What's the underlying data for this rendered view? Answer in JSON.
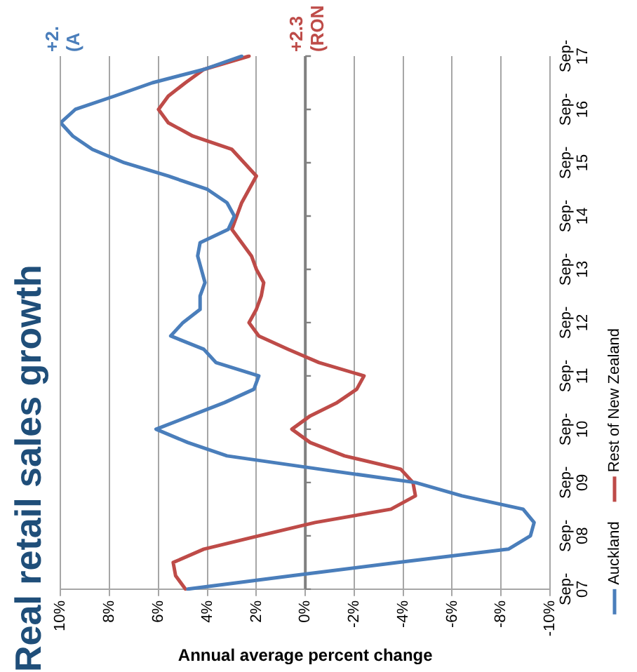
{
  "chart_data": {
    "type": "line",
    "orientation": "horizontal",
    "title": "Real retail sales growth",
    "xlabel": "Annual average percent change",
    "categories": [
      "Sep-17",
      null,
      null,
      null,
      "Sep-16",
      null,
      null,
      null,
      "Sep-15",
      null,
      null,
      null,
      "Sep-14",
      null,
      null,
      null,
      "Sep-13",
      null,
      null,
      null,
      "Sep-12",
      null,
      null,
      null,
      "Sep-11",
      null,
      null,
      null,
      "Sep-10",
      null,
      null,
      null,
      "Sep-09",
      null,
      null,
      null,
      "Sep-08",
      null,
      null,
      null,
      "Sep-07"
    ],
    "xlim": [
      10,
      -10
    ],
    "xticks": [
      {
        "value": 10,
        "label": "10%"
      },
      {
        "value": 8,
        "label": "8%"
      },
      {
        "value": 6,
        "label": "6%"
      },
      {
        "value": 4,
        "label": "4%"
      },
      {
        "value": 2,
        "label": "2%"
      },
      {
        "value": 0,
        "label": "0%"
      },
      {
        "value": -2,
        "label": "-2%"
      },
      {
        "value": -4,
        "label": "-4%"
      },
      {
        "value": -6,
        "label": "-6%"
      },
      {
        "value": -8,
        "label": "-8%"
      },
      {
        "value": -10,
        "label": "-10%"
      }
    ],
    "grid": "x",
    "legend": "right",
    "marker": "none",
    "line_style": "solid",
    "ref_lines": [
      {
        "axis": "x",
        "value": 0,
        "color": "#808080"
      }
    ],
    "annotations": [
      "+2.",
      "(A",
      "+2.3",
      "(RON"
    ],
    "series": [
      {
        "name": "Auckland",
        "color": "#4a7ebb",
        "values": [
          2.6,
          4.15,
          6.25,
          7.8,
          9.4,
          10.0,
          9.5,
          8.7,
          7.4,
          5.6,
          4.0,
          3.2,
          2.9,
          3.15,
          4.3,
          4.4,
          4.25,
          4.1,
          4.3,
          4.3,
          5.0,
          5.5,
          4.15,
          3.65,
          1.9,
          2.1,
          3.3,
          4.7,
          6.1,
          4.8,
          3.2,
          -0.6,
          -4.5,
          -6.4,
          -8.9,
          -9.35,
          -9.2,
          -8.3,
          -3.8,
          0.55,
          4.8
        ]
      },
      {
        "name": "Rest of New Zealand",
        "color": "#be4b48",
        "values": [
          2.3,
          4.15,
          4.9,
          5.6,
          6.0,
          5.6,
          4.6,
          3.0,
          2.5,
          2.0,
          2.3,
          2.6,
          2.8,
          3.0,
          2.6,
          2.2,
          2.0,
          1.7,
          1.8,
          2.0,
          2.3,
          1.9,
          0.7,
          -0.56,
          -2.4,
          -2.1,
          -1.3,
          -0.2,
          0.55,
          -0.2,
          -1.6,
          -3.9,
          -4.4,
          -4.5,
          -3.5,
          -0.4,
          1.9,
          4.15,
          5.4,
          5.3,
          4.9
        ]
      }
    ]
  }
}
